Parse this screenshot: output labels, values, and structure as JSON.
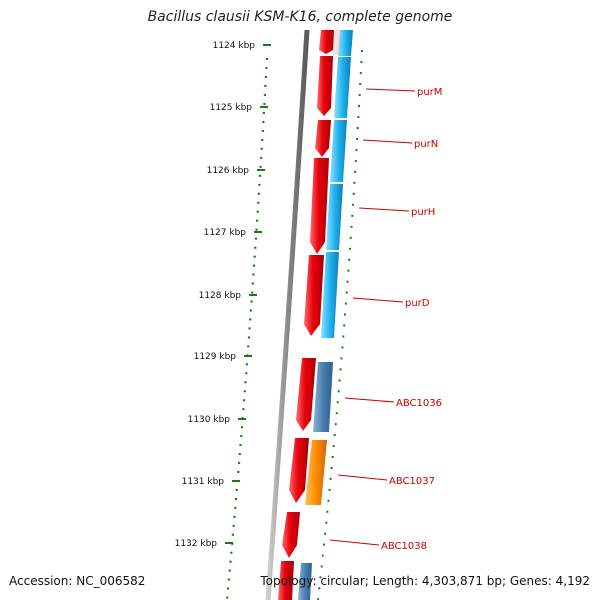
{
  "title": "Bacillus clausii KSM-K16, complete genome",
  "accession_text": "Accession: NC_006582",
  "summary_text": "Topology: circular; Length: 4,303,871 bp; Genes: 4,192",
  "ruler_ticks": [
    "1124 kbp",
    "1125 kbp",
    "1126 kbp",
    "1127 kbp",
    "1128 kbp",
    "1129 kbp",
    "1130 kbp",
    "1131 kbp",
    "1132 kbp"
  ],
  "gene_labels": [
    "purM",
    "purN",
    "purH",
    "purD",
    "ABC1036",
    "ABC1037",
    "ABC1038"
  ],
  "colors": {
    "forward_strand": "#e8000b",
    "reverse_strand_blue": "#1fb4f0",
    "reverse_strand_steel": "#4a7fb0",
    "orange_gene": "#ff8c00",
    "backbone": "#8a8a8a",
    "ruler": "#1a7a1a",
    "label_line": "#cc0000"
  }
}
